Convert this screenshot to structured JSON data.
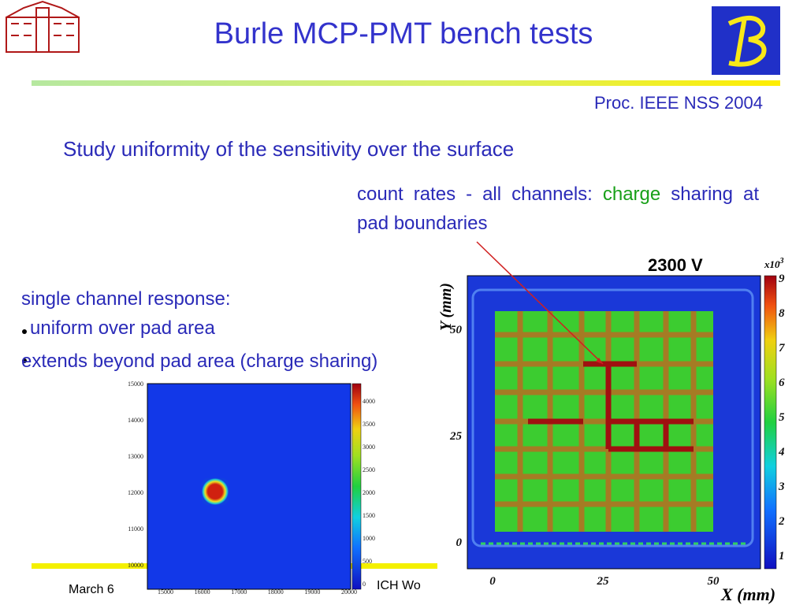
{
  "header": {
    "title": "Burle MCP-PMT bench tests",
    "reference": "Proc. IEEE NSS 2004"
  },
  "subtitle": "Study uniformity of the sensitivity over the surface",
  "caption": {
    "part1": "count rates - all channels:",
    "part2": "charge",
    "part3": "sharing at pad boundaries"
  },
  "left_text": {
    "heading": "single channel response:",
    "bullets": [
      "uniform over pad area",
      "extends beyond pad area (charge sharing)"
    ]
  },
  "small_plot": {
    "yticks": [
      "15000",
      "14000",
      "13000",
      "12000",
      "11000",
      "10000"
    ],
    "xticks": [
      "15000",
      "16000",
      "17000",
      "18000",
      "19000",
      "20000"
    ],
    "colorbar_ticks": [
      "4000",
      "3500",
      "3000",
      "2500",
      "2000",
      "1500",
      "1000",
      "500",
      "0"
    ]
  },
  "big_plot": {
    "label": "2300 V",
    "ylabel": "Y (mm)",
    "xlabel": "X (mm)",
    "yticks": [
      "50",
      "25",
      "0"
    ],
    "xticks": [
      "0",
      "25",
      "50"
    ],
    "colorbar_scale": "x10",
    "colorbar_exponent": "3",
    "colorbar_ticks": [
      "9",
      "8",
      "7",
      "6",
      "5",
      "4",
      "3",
      "2",
      "1"
    ]
  },
  "footer": {
    "date": "March 6",
    "event": "ICH Wo"
  }
}
